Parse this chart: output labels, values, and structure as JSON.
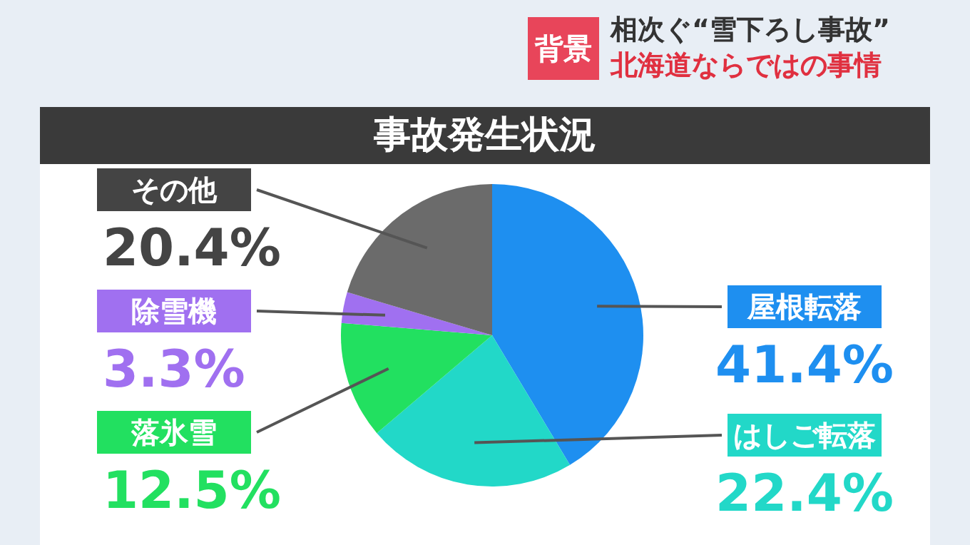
{
  "chart_data": {
    "type": "pie",
    "title": "事故発生状況",
    "annotations": [
      "背景",
      "相次ぐ“雪下ろし事故”",
      "北海道ならではの事情"
    ],
    "categories": [
      "屋根転落",
      "はしご転落",
      "落氷雪",
      "除雪機",
      "その他"
    ],
    "values": [
      41.4,
      22.4,
      12.5,
      3.3,
      20.4
    ],
    "value_labels": [
      "41.4%",
      "22.4%",
      "12.5%",
      "3.3%",
      "20.4%"
    ],
    "colors": [
      "#1e8ff0",
      "#22d8c8",
      "#22e060",
      "#a070f0",
      "#6b6b6b"
    ]
  }
}
